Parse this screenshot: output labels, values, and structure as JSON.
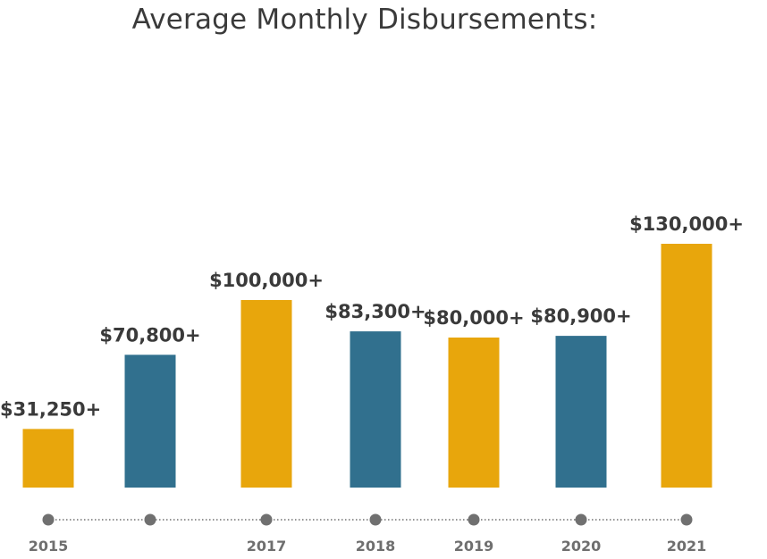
{
  "chart_data": {
    "type": "bar",
    "title": "Average Monthly Disbursements:",
    "categories": [
      "2015",
      "",
      "2017",
      "2018",
      "2019",
      "2020",
      "2021"
    ],
    "values": [
      31250,
      70800,
      100000,
      83300,
      80000,
      80900,
      130000
    ],
    "data_labels": [
      "$31,250+",
      "$70,800+",
      "$100,000+",
      "$83,300+",
      "$80,000+",
      "$80,900+",
      "$130,000+"
    ],
    "bar_colors": [
      "#E8A60C",
      "#31708E",
      "#E8A60C",
      "#31708E",
      "#E8A60C",
      "#31708E",
      "#E8A60C"
    ],
    "timeline_color": "#707070",
    "xlabel": "",
    "ylabel": "",
    "grid": false,
    "ylim": [
      0,
      130000
    ]
  }
}
